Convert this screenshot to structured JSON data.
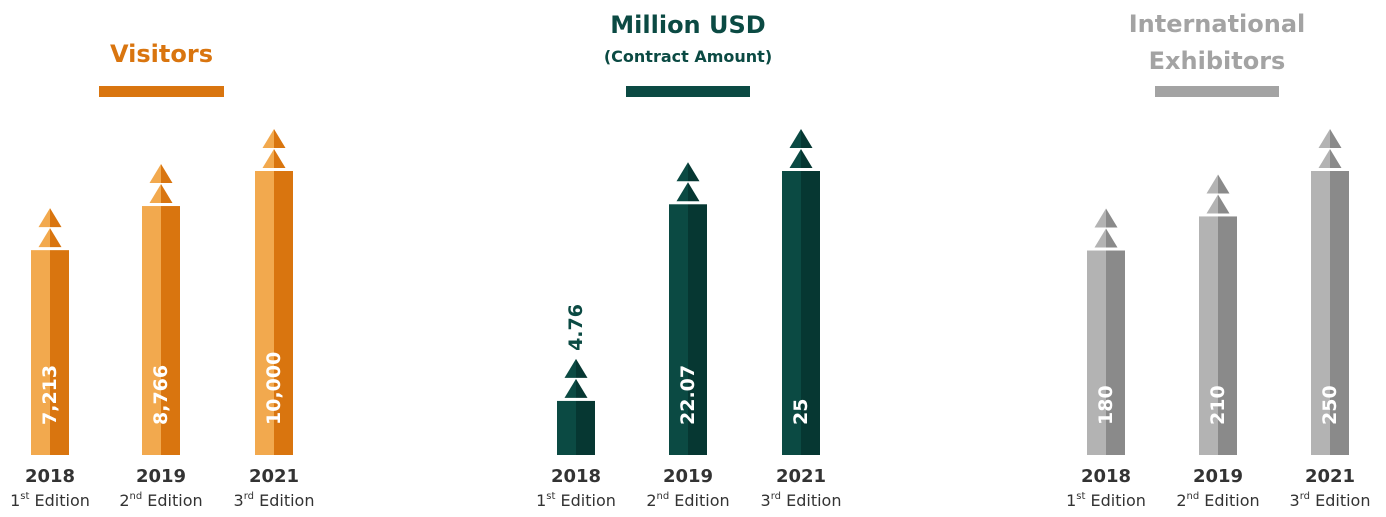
{
  "chart_data": [
    {
      "type": "bar",
      "title": "Visitors",
      "subtitle": "",
      "categories": [
        "2018",
        "2019",
        "2021"
      ],
      "editions": [
        {
          "num": "1",
          "sup": "st",
          "word": "Edition"
        },
        {
          "num": "2",
          "sup": "nd",
          "word": "Edition"
        },
        {
          "num": "3",
          "sup": "rd",
          "word": "Edition"
        }
      ],
      "values": [
        7213,
        8766,
        10000
      ],
      "value_labels": [
        "7,213",
        "8,766",
        "10,000"
      ],
      "ylim": [
        0,
        10000
      ],
      "colors": {
        "title": "#d9750f",
        "light": "#f2a94e",
        "dark": "#d9750f",
        "label": "#ffffff"
      }
    },
    {
      "type": "bar",
      "title": "Million USD",
      "subtitle": "(Contract Amount)",
      "categories": [
        "2018",
        "2019",
        "2021"
      ],
      "editions": [
        {
          "num": "1",
          "sup": "st",
          "word": "Edition"
        },
        {
          "num": "2",
          "sup": "nd",
          "word": "Edition"
        },
        {
          "num": "3",
          "sup": "rd",
          "word": "Edition"
        }
      ],
      "values": [
        4.76,
        22.07,
        25
      ],
      "value_labels": [
        "4.76",
        "22.07",
        "25"
      ],
      "ylim": [
        0,
        25
      ],
      "colors": {
        "title": "#0b4a43",
        "light": "#0b4a43",
        "dark": "#063732",
        "label": "#ffffff"
      }
    },
    {
      "type": "bar",
      "title": "International",
      "subtitle": "Exhibitors",
      "categories": [
        "2018",
        "2019",
        "2021"
      ],
      "editions": [
        {
          "num": "1",
          "sup": "st",
          "word": "Edition"
        },
        {
          "num": "2",
          "sup": "nd",
          "word": "Edition"
        },
        {
          "num": "3",
          "sup": "rd",
          "word": "Edition"
        }
      ],
      "values": [
        180,
        210,
        250
      ],
      "value_labels": [
        "180",
        "210",
        "250"
      ],
      "ylim": [
        0,
        250
      ],
      "colors": {
        "title": "#a3a3a3",
        "light": "#b3b3b3",
        "dark": "#8a8a8a",
        "label": "#ffffff"
      }
    }
  ]
}
